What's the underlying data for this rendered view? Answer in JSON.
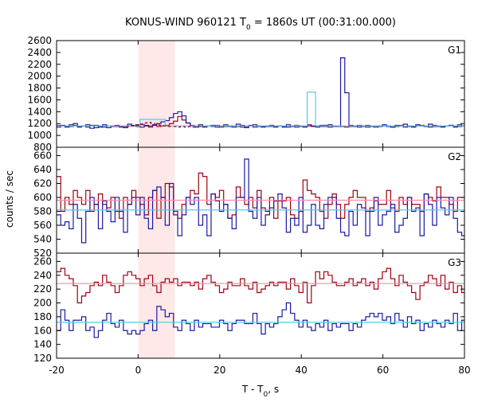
{
  "chart_data": {
    "type": "line",
    "subtype": "step",
    "title": "KONUS-WIND 960121 T0 = 1860s UT (00:31:00.000)",
    "title_parts": {
      "before_sub": "KONUS-WIND 960121 T",
      "sub": "0",
      "after_sub": " = 1860s UT (00:31:00.000)"
    },
    "xlabel_parts": {
      "before_sub": "T - T",
      "sub": "0",
      "after_sub": ", s"
    },
    "ylabel": "counts / sec",
    "xlim": [
      -20,
      80
    ],
    "xticks": [
      "-20",
      "0",
      "20",
      "40",
      "60",
      "80"
    ],
    "highlight": {
      "x0": 0,
      "x1": 9,
      "color": "#ffe8e8"
    },
    "colors": {
      "dark_red": "#a0000f",
      "blue": "#1a1aa8",
      "light_blue": "#55c8f0",
      "pink": "#ff88aa"
    },
    "panels": [
      {
        "label": "G1",
        "ylim": [
          1000,
          2600
        ],
        "yticks": [
          "2600",
          "2400",
          "2200",
          "2000",
          "1800",
          "1600",
          "1400",
          "1200",
          "1000",
          "800"
        ],
        "tick_values": [
          2600,
          2400,
          2200,
          2000,
          1800,
          1600,
          1400,
          1200,
          1000,
          800
        ],
        "ymin": 800,
        "series": [
          {
            "color": "dark_red",
            "x0": -20,
            "dx": 1.024,
            "values": [
              1170,
              1160,
              1140,
              1150,
              1170,
              1150,
              1160,
              1140,
              1170,
              1130,
              1150,
              1140,
              1160,
              1150,
              1150,
              1140,
              1150,
              1160,
              1170,
              1150,
              1180,
              1160,
              1140,
              1170,
              1150,
              1160,
              1170,
              1200,
              1240,
              1320,
              1260,
              1210,
              1170,
              1160,
              1150,
              1140,
              1160,
              1150,
              1170,
              1140,
              1150,
              1160,
              1160,
              1150,
              1140,
              1150,
              1170,
              1140,
              1160,
              1150,
              1160,
              1150,
              1140,
              1160,
              1150,
              1140,
              1160,
              1170,
              1150,
              1140,
              1160,
              1150,
              1160,
              1150,
              1170,
              1140,
              1150,
              1150,
              1150,
              1140,
              1150,
              1160,
              1170,
              1150,
              1140,
              1150,
              1160,
              1150,
              1160,
              1160,
              1140,
              1150,
              1170,
              1140,
              1160,
              1150,
              1160,
              1170,
              1150,
              1140,
              1150,
              1160,
              1150,
              1160,
              1170,
              1140,
              1150,
              1160
            ]
          },
          {
            "color": "blue",
            "x0": -20,
            "dx": 1.024,
            "values": [
              1140,
              1170,
              1150,
              1180,
              1200,
              1140,
              1160,
              1180,
              1120,
              1170,
              1140,
              1180,
              1130,
              1160,
              1170,
              1150,
              1130,
              1190,
              1160,
              1180,
              1140,
              1170,
              1160,
              1180,
              1200,
              1230,
              1250,
              1300,
              1370,
              1400,
              1330,
              1210,
              1160,
              1140,
              1180,
              1150,
              1160,
              1170,
              1140,
              1160,
              1180,
              1150,
              1140,
              1190,
              1170,
              1130,
              1160,
              1180,
              1150,
              1140,
              1150,
              1170,
              1150,
              1160,
              1140,
              1180,
              1150,
              1140,
              1160,
              1150,
              1180,
              1160,
              1140,
              1170,
              1150,
              1180,
              1160,
              1150,
              2310,
              1720,
              1170,
              1150,
              1140,
              1160,
              1170,
              1150,
              1140,
              1160,
              1180,
              1150,
              1140,
              1170,
              1160,
              1190,
              1150,
              1140,
              1180,
              1160,
              1150,
              1190,
              1170,
              1150,
              1140,
              1160,
              1170,
              1150,
              1180,
              1160
            ]
          },
          {
            "color": "light_blue",
            "x0": -20,
            "dx": 2.048,
            "values": [
              1160,
              1160,
              1160,
              1160,
              1160,
              1160,
              1160,
              1160,
              1160,
              1160,
              1270,
              1270,
              1270,
              1160,
              1160,
              1160,
              1160,
              1160,
              1160,
              1160,
              1160,
              1160,
              1160,
              1160,
              1160,
              1160,
              1160,
              1160,
              1160,
              1160,
              1730,
              1160,
              1160,
              1160,
              1160,
              1160,
              1160,
              1160,
              1160,
              1160,
              1160,
              1160,
              1160,
              1160,
              1160,
              1160,
              1160,
              1160,
              1160
            ]
          },
          {
            "color": "dark_red",
            "dashed": true,
            "x0": -3,
            "dx": 1.024,
            "values": [
              1150,
              1160,
              1170,
              1190,
              1210,
              1220,
              1200,
              1180,
              1170,
              1160,
              1150,
              1150,
              1140,
              1150,
              1140,
              1150,
              1140,
              1150
            ]
          }
        ]
      },
      {
        "label": "G2",
        "ylim": [
          520,
          672
        ],
        "yticks": [
          "660",
          "640",
          "620",
          "600",
          "580",
          "560",
          "540",
          "520"
        ],
        "tick_values": [
          660,
          640,
          620,
          600,
          580,
          560,
          540,
          520
        ],
        "ymin": 520,
        "series": [
          {
            "color": "dark_red",
            "x0": -20,
            "dx": 1.024,
            "values": [
              630,
              580,
              600,
              590,
              610,
              600,
              590,
              610,
              580,
              590,
              605,
              590,
              585,
              600,
              580,
              570,
              600,
              590,
              610,
              600,
              590,
              575,
              600,
              610,
              570,
              600,
              620,
              615,
              580,
              570,
              590,
              600,
              610,
              605,
              635,
              630,
              590,
              605,
              600,
              610,
              590,
              570,
              575,
              615,
              600,
              590,
              600,
              585,
              610,
              585,
              580,
              600,
              570,
              595,
              595,
              600,
              575,
              570,
              580,
              625,
              610,
              605,
              600,
              580,
              570,
              590,
              605,
              590,
              570,
              590,
              600,
              610,
              600,
              600,
              580,
              585,
              595,
              590,
              590,
              610,
              585,
              580,
              600,
              590,
              600,
              590,
              590,
              580,
              605,
              600,
              595,
              615,
              600,
              600,
              590,
              580,
              600,
              600
            ]
          },
          {
            "color": "blue",
            "x0": -20,
            "dx": 1.024,
            "values": [
              575,
              560,
              565,
              555,
              590,
              570,
              535,
              580,
              600,
              590,
              555,
              595,
              580,
              565,
              600,
              580,
              550,
              590,
              600,
              575,
              600,
              570,
              555,
              610,
              615,
              600,
              560,
              620,
              575,
              545,
              575,
              600,
              590,
              600,
              560,
              575,
              545,
              605,
              595,
              580,
              590,
              570,
              555,
              600,
              600,
              655,
              580,
              570,
              600,
              560,
              575,
              585,
              595,
              605,
              585,
              550,
              570,
              560,
              600,
              550,
              560,
              590,
              560,
              555,
              590,
              600,
              600,
              570,
              550,
              545,
              580,
              560,
              590,
              585,
              545,
              580,
              600,
              560,
              575,
              580,
              590,
              550,
              560,
              570,
              600,
              580,
              585,
              545,
              605,
              590,
              560,
              600,
              585,
              575,
              600,
              570,
              550,
              545
            ]
          },
          {
            "color": "pink",
            "constant": 596,
            "x_from": -20,
            "x_to": 80
          },
          {
            "color": "light_blue",
            "constant": 582,
            "x_from": -20,
            "x_to": 80
          }
        ]
      },
      {
        "label": "G3",
        "ylim": [
          120,
          272
        ],
        "yticks": [
          "260",
          "240",
          "220",
          "200",
          "180",
          "160",
          "140",
          "120"
        ],
        "tick_values": [
          260,
          240,
          220,
          200,
          180,
          160,
          140,
          120
        ],
        "ymin": 120,
        "series": [
          {
            "color": "dark_red",
            "x0": -20,
            "dx": 1.024,
            "values": [
              245,
              250,
              240,
              235,
              225,
              200,
              210,
              215,
              225,
              230,
              225,
              240,
              230,
              225,
              215,
              225,
              240,
              245,
              240,
              235,
              225,
              235,
              240,
              225,
              215,
              230,
              235,
              230,
              235,
              225,
              230,
              230,
              225,
              230,
              220,
              235,
              240,
              230,
              225,
              215,
              220,
              230,
              225,
              225,
              235,
              225,
              220,
              230,
              215,
              220,
              225,
              230,
              225,
              230,
              230,
              220,
              235,
              225,
              215,
              230,
              200,
              225,
              245,
              235,
              245,
              240,
              230,
              225,
              225,
              230,
              235,
              225,
              230,
              235,
              225,
              230,
              220,
              235,
              245,
              250,
              235,
              225,
              240,
              230,
              225,
              215,
              205,
              225,
              230,
              240,
              235,
              225,
              240,
              220,
              230,
              215,
              225,
              215
            ]
          },
          {
            "color": "blue",
            "x0": -20,
            "dx": 1.024,
            "values": [
              160,
              190,
              175,
              160,
              175,
              175,
              180,
              160,
              165,
              150,
              160,
              175,
              185,
              170,
              165,
              175,
              160,
              155,
              160,
              155,
              160,
              170,
              175,
              160,
              195,
              190,
              180,
              185,
              165,
              160,
              175,
              170,
              160,
              175,
              165,
              170,
              170,
              165,
              165,
              175,
              170,
              160,
              170,
              175,
              175,
              170,
              170,
              185,
              170,
              155,
              170,
              165,
              170,
              180,
              190,
              200,
              185,
              175,
              165,
              175,
              165,
              160,
              170,
              165,
              175,
              160,
              170,
              165,
              170,
              170,
              160,
              170,
              165,
              175,
              180,
              185,
              180,
              185,
              175,
              180,
              170,
              185,
              175,
              165,
              180,
              170,
              175,
              160,
              170,
              165,
              175,
              170,
              165,
              175,
              170,
              185,
              160,
              175
            ]
          },
          {
            "color": "pink",
            "constant": 228,
            "x_from": -20,
            "x_to": 80
          },
          {
            "color": "light_blue",
            "constant": 172,
            "x_from": -20,
            "x_to": 80
          }
        ]
      }
    ]
  }
}
